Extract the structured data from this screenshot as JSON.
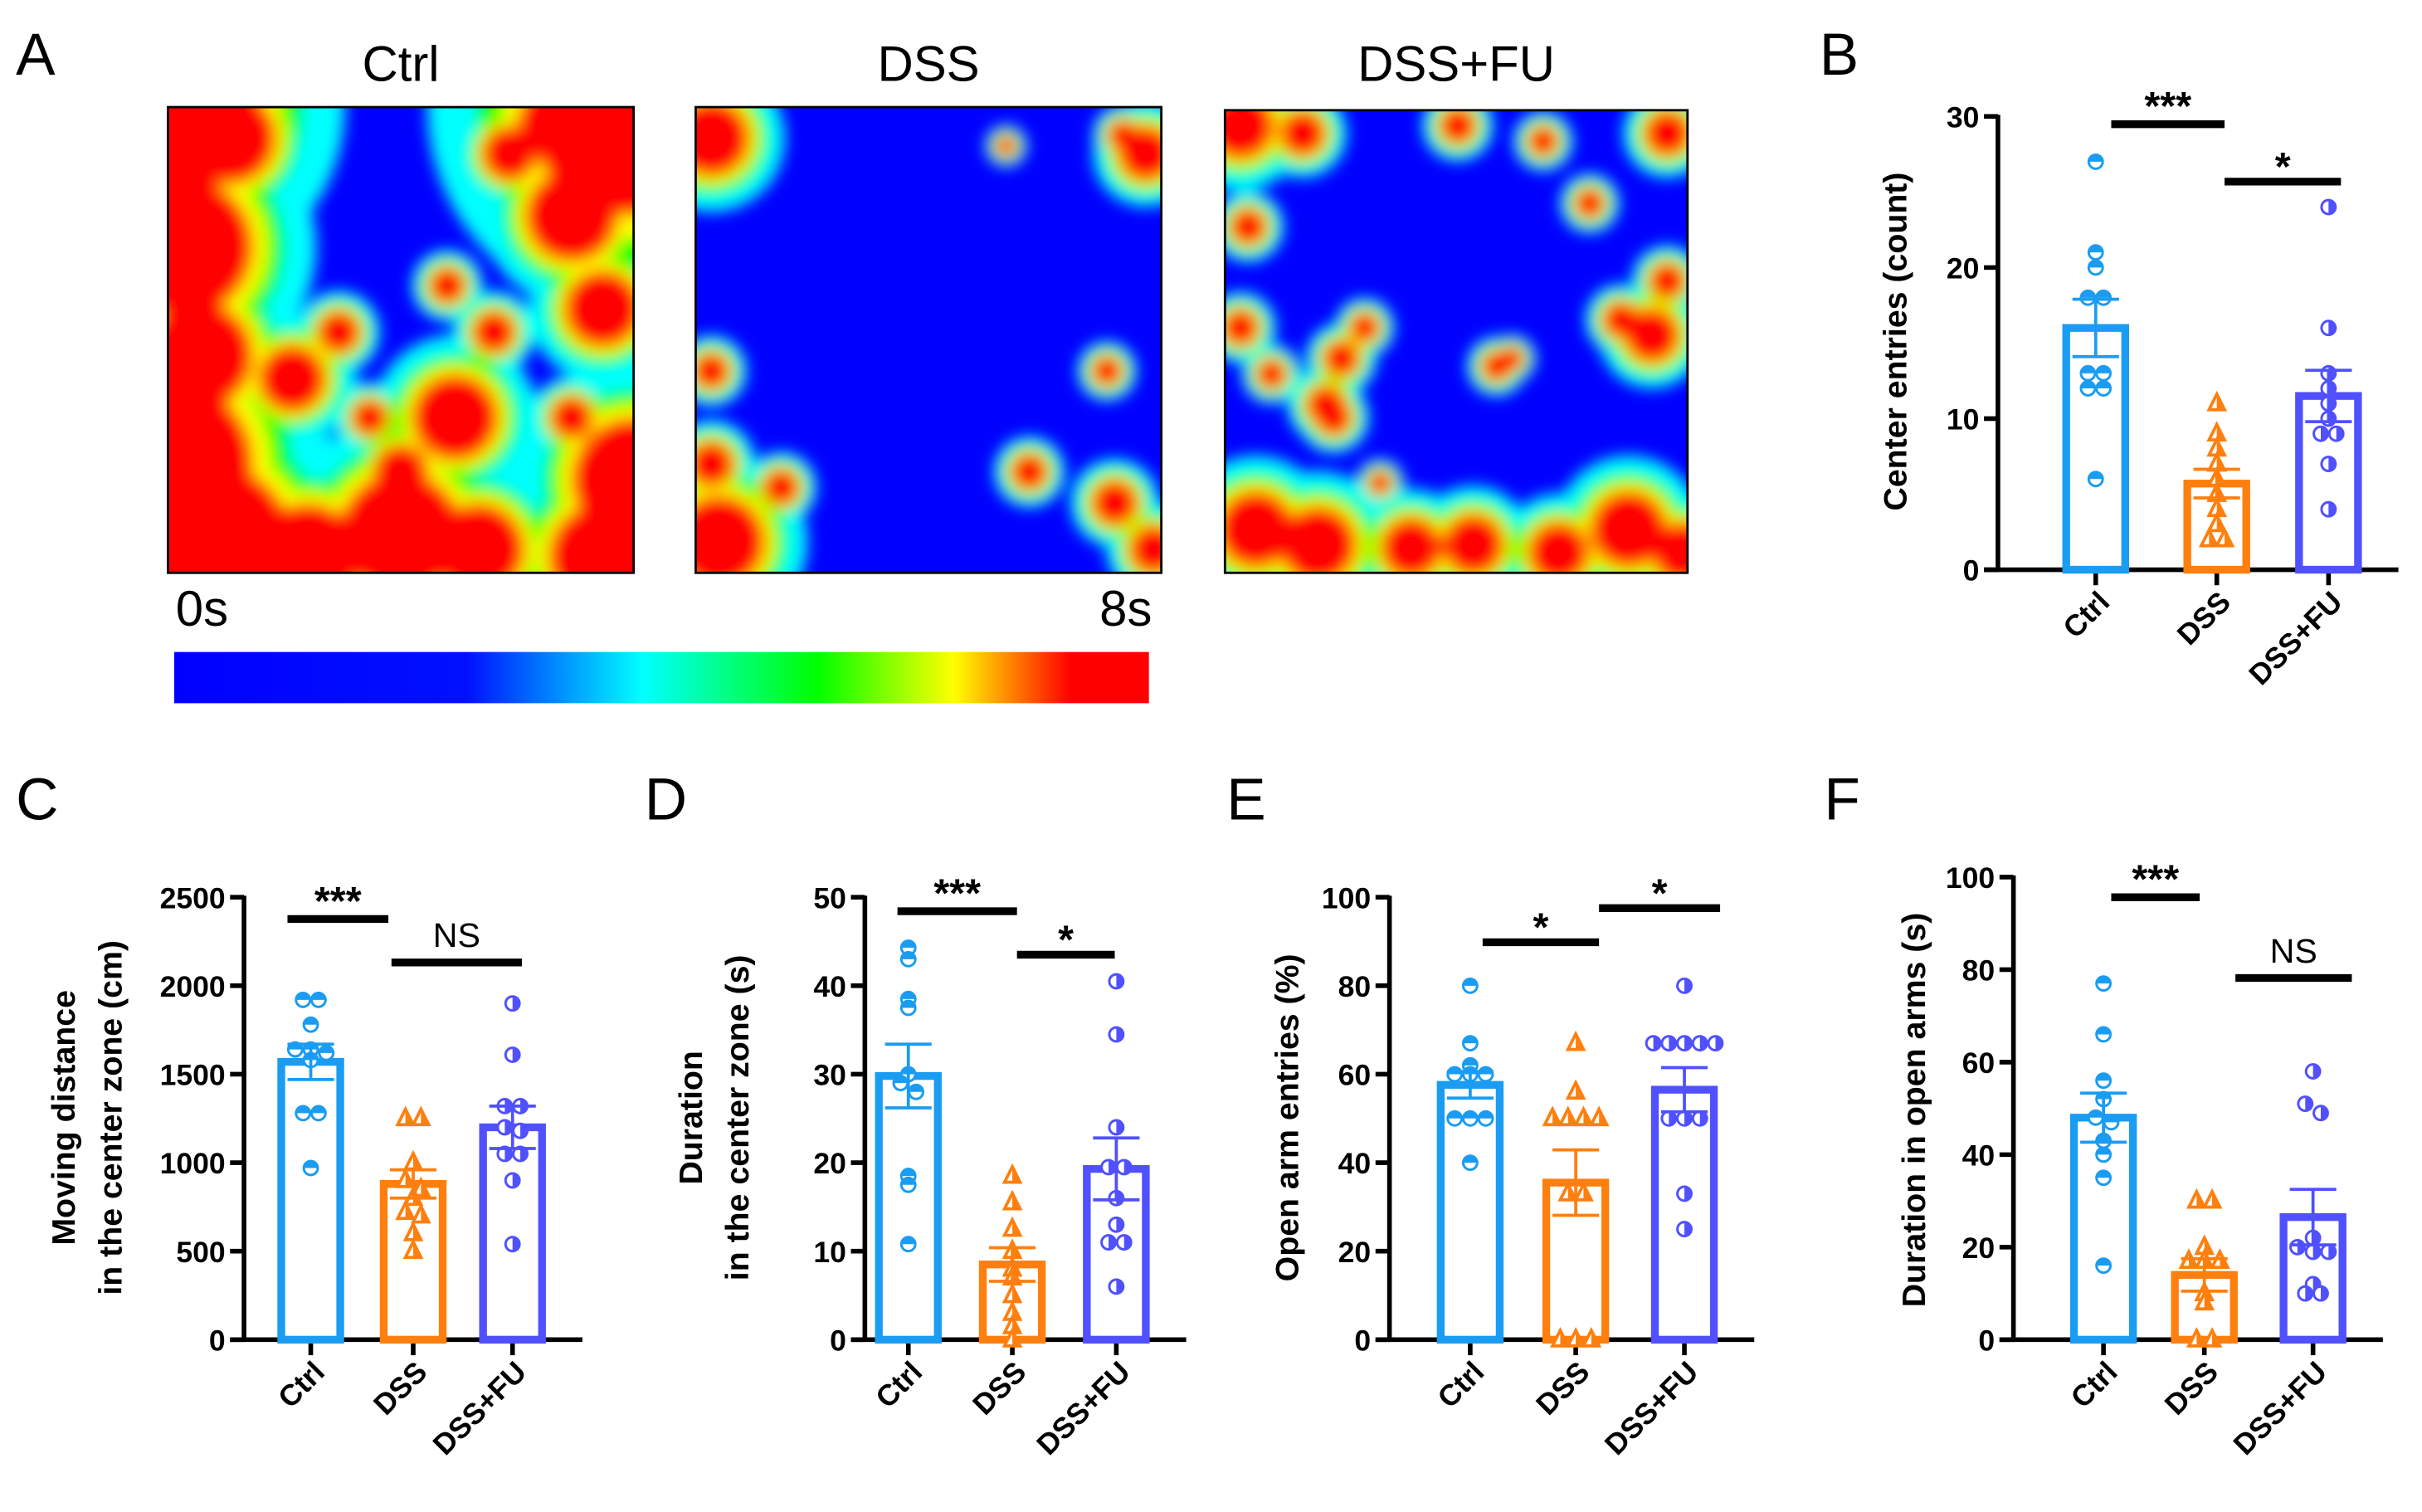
{
  "panel_a": {
    "letter": "A",
    "titles": [
      "Ctrl",
      "DSS",
      "DSS+FU"
    ],
    "colorbar": {
      "min_label": "0s",
      "max_label": "8s",
      "colors": [
        "#0000ff",
        "#00ffff",
        "#00ff00",
        "#ffff00",
        "#ff0000"
      ]
    }
  },
  "colors": {
    "Ctrl": "#1a9cf2",
    "DSS": "#ff7f0e",
    "DSS+FU": "#5050ff"
  },
  "chart_data": [
    {
      "panel": "B",
      "type": "bar",
      "ylabel": [
        "Center entries (count)"
      ],
      "ylim": [
        0,
        30
      ],
      "yticks": [
        0,
        10,
        20,
        30
      ],
      "categories": [
        "Ctrl",
        "DSS",
        "DSS+FU"
      ],
      "series": [
        {
          "name": "Ctrl",
          "mean": 16,
          "sem": 1.9,
          "points": [
            27,
            21,
            20,
            18,
            18,
            13,
            13,
            12,
            12,
            6
          ]
        },
        {
          "name": "DSS",
          "mean": 5.7,
          "sem": 0.95,
          "points": [
            11,
            9,
            8,
            7,
            6,
            5,
            4,
            3,
            2,
            2
          ]
        },
        {
          "name": "DSS+FU",
          "mean": 11.5,
          "sem": 1.7,
          "points": [
            24,
            16,
            13,
            12,
            11,
            10,
            9,
            9,
            7,
            4
          ]
        }
      ],
      "significance": [
        {
          "groups": [
            "Ctrl",
            "DSS"
          ],
          "label": "***"
        },
        {
          "groups": [
            "DSS",
            "DSS+FU"
          ],
          "label": "*"
        }
      ]
    },
    {
      "panel": "C",
      "type": "bar",
      "ylabel": [
        "Moving distance",
        "in the center zone (cm)"
      ],
      "ylim": [
        0,
        2500
      ],
      "yticks": [
        0,
        500,
        1000,
        1500,
        2000,
        2500
      ],
      "categories": [
        "Ctrl",
        "DSS",
        "DSS+FU"
      ],
      "series": [
        {
          "name": "Ctrl",
          "mean": 1570,
          "sem": 100,
          "points": [
            1920,
            1920,
            1780,
            1640,
            1640,
            1620,
            1580,
            1280,
            1280,
            970
          ]
        },
        {
          "name": "DSS",
          "mean": 880,
          "sem": 80,
          "points": [
            1250,
            1250,
            1000,
            900,
            850,
            800,
            720,
            700,
            600,
            500
          ]
        },
        {
          "name": "DSS+FU",
          "mean": 1200,
          "sem": 120,
          "points": [
            1900,
            1610,
            1320,
            1320,
            1200,
            1180,
            1050,
            1050,
            900,
            540
          ]
        }
      ],
      "significance": [
        {
          "groups": [
            "Ctrl",
            "DSS"
          ],
          "label": "***"
        },
        {
          "groups": [
            "DSS",
            "DSS+FU"
          ],
          "label": "NS"
        }
      ]
    },
    {
      "panel": "D",
      "type": "bar",
      "ylabel": [
        "Duration",
        "in the center zone (s)"
      ],
      "ylim": [
        0,
        50
      ],
      "yticks": [
        0,
        10,
        20,
        30,
        40,
        50
      ],
      "categories": [
        "Ctrl",
        "DSS",
        "DSS+FU"
      ],
      "series": [
        {
          "name": "Ctrl",
          "mean": 29.8,
          "sem": 3.6,
          "points": [
            44.3,
            43,
            38.5,
            37.5,
            30,
            29,
            28,
            18.5,
            17.5,
            10.8
          ]
        },
        {
          "name": "DSS",
          "mean": 8.5,
          "sem": 1.9,
          "points": [
            18.5,
            15.5,
            12.5,
            10,
            8,
            7,
            5,
            3,
            1.5,
            0
          ]
        },
        {
          "name": "DSS+FU",
          "mean": 19.3,
          "sem": 3.5,
          "points": [
            40.5,
            34.5,
            24,
            19.5,
            19.5,
            16,
            13,
            11,
            11,
            6
          ]
        }
      ],
      "significance": [
        {
          "groups": [
            "Ctrl",
            "DSS"
          ],
          "label": "***"
        },
        {
          "groups": [
            "DSS",
            "DSS+FU"
          ],
          "label": "*"
        }
      ]
    },
    {
      "panel": "E",
      "type": "bar",
      "ylabel": [
        "Open arm entries (%)"
      ],
      "ylim": [
        0,
        100
      ],
      "yticks": [
        0,
        20,
        40,
        60,
        80,
        100
      ],
      "categories": [
        "Ctrl",
        "DSS",
        "DSS+FU"
      ],
      "series": [
        {
          "name": "Ctrl",
          "mean": 57.6,
          "sem": 3,
          "points": [
            80,
            67,
            62,
            60,
            60,
            60,
            50,
            50,
            50,
            40
          ]
        },
        {
          "name": "DSS",
          "mean": 35.5,
          "sem": 7.4,
          "points": [
            67,
            56,
            50,
            50,
            50,
            50,
            33,
            33,
            0,
            0,
            0
          ]
        },
        {
          "name": "DSS+FU",
          "mean": 56.5,
          "sem": 5,
          "points": [
            80,
            67,
            67,
            67,
            67,
            67,
            50,
            50,
            50,
            33,
            25
          ]
        }
      ],
      "significance": [
        {
          "groups": [
            "Ctrl",
            "DSS"
          ],
          "label": "*"
        },
        {
          "groups": [
            "DSS",
            "DSS+FU"
          ],
          "label": "*"
        }
      ]
    },
    {
      "panel": "F",
      "type": "bar",
      "ylabel": [
        "Duration in open arms (s)"
      ],
      "ylim": [
        0,
        100
      ],
      "yticks": [
        0,
        20,
        40,
        60,
        80,
        100
      ],
      "categories": [
        "Ctrl",
        "DSS",
        "DSS+FU"
      ],
      "series": [
        {
          "name": "Ctrl",
          "mean": 48,
          "sem": 5.3,
          "points": [
            77,
            66,
            56,
            52,
            48,
            47,
            43,
            40,
            35,
            16
          ]
        },
        {
          "name": "DSS",
          "mean": 14,
          "sem": 3.5,
          "points": [
            30,
            30,
            20,
            17,
            17,
            17,
            10,
            8,
            0,
            0
          ]
        },
        {
          "name": "DSS+FU",
          "mean": 26.5,
          "sem": 6,
          "points": [
            58,
            51,
            49,
            22,
            20,
            19,
            19,
            12,
            10,
            10
          ]
        }
      ],
      "significance": [
        {
          "groups": [
            "Ctrl",
            "DSS"
          ],
          "label": "***"
        },
        {
          "groups": [
            "DSS",
            "DSS+FU"
          ],
          "label": "NS"
        }
      ]
    }
  ]
}
